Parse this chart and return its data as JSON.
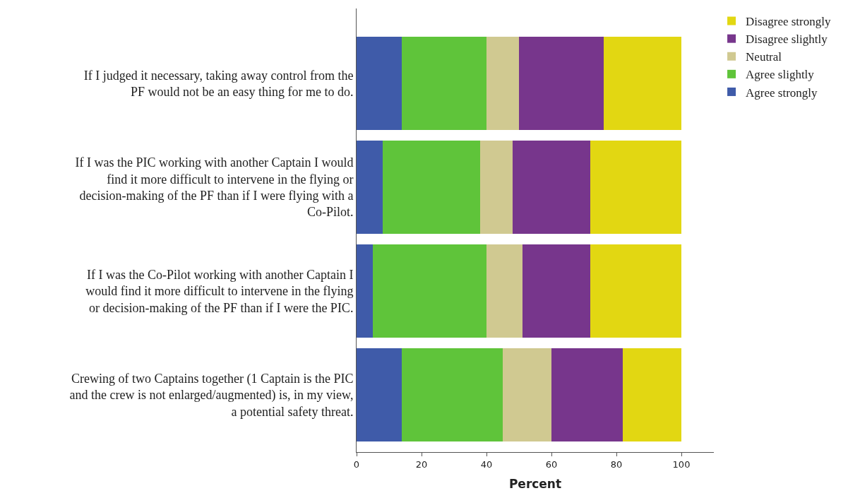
{
  "chart_data": {
    "type": "bar",
    "orientation": "horizontal",
    "stacked": true,
    "xlabel": "Percent",
    "categories": [
      "If I judged it necessary, taking away control from the PF would not be an easy thing for me to do.",
      "If I was the PIC working with another Captain I would find it more difficult to intervene in the flying or decision-making of the PF than if I were flying with a Co-Pilot.",
      "If I was the Co-Pilot working with another Captain I would find it more difficult to intervene in the flying or decision-making of the PF than if I were the PIC.",
      "Crewing of two Captains together (1 Captain is the PIC and the crew is not enlarged/augmented) is, in my view, a potential safety threat."
    ],
    "series": [
      {
        "name": "Agree strongly",
        "color": "#3f5ba9",
        "values": [
          14,
          8,
          5,
          14
        ]
      },
      {
        "name": "Agree slightly",
        "color": "#5fc43a",
        "values": [
          26,
          30,
          35,
          31
        ]
      },
      {
        "name": "Neutral",
        "color": "#d0c991",
        "values": [
          10,
          10,
          11,
          15
        ]
      },
      {
        "name": "Disagree slightly",
        "color": "#77368c",
        "values": [
          26,
          24,
          21,
          22
        ]
      },
      {
        "name": "Disagree strongly",
        "color": "#e2d712",
        "values": [
          24,
          28,
          28,
          18
        ]
      }
    ],
    "xlim": [
      0,
      110
    ],
    "xticks": [
      0,
      20,
      40,
      60,
      80,
      100
    ],
    "legend": "top right"
  }
}
